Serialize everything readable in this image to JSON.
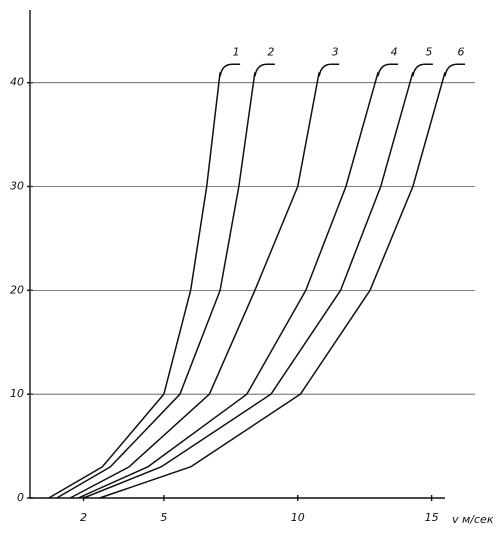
{
  "chart_data": {
    "type": "line",
    "x_label": "v м/сек",
    "xlim": [
      0,
      15.5
    ],
    "xticks": [
      2,
      5,
      10,
      15
    ],
    "ylim": [
      0,
      47
    ],
    "yticks": [
      0,
      10,
      20,
      30,
      40
    ],
    "grid": true,
    "series": [
      {
        "name": "1",
        "color": "#111111",
        "x": [
          0.7,
          2.7,
          5.0,
          6.0,
          6.6,
          7.1
        ],
        "values": [
          0,
          3,
          10,
          20,
          30,
          41
        ]
      },
      {
        "name": "2",
        "color": "#111111",
        "x": [
          1.0,
          3.0,
          5.6,
          7.1,
          7.8,
          8.4
        ],
        "values": [
          0,
          3,
          10,
          20,
          30,
          41
        ]
      },
      {
        "name": "3",
        "color": "#111111",
        "x": [
          1.5,
          3.7,
          6.7,
          8.4,
          10.0,
          10.8
        ],
        "values": [
          0,
          3,
          10,
          20,
          30,
          41
        ]
      },
      {
        "name": "4",
        "color": "#111111",
        "x": [
          1.8,
          4.4,
          8.1,
          10.3,
          11.8,
          13.0
        ],
        "values": [
          0,
          3,
          10,
          20,
          30,
          41
        ]
      },
      {
        "name": "5",
        "color": "#111111",
        "x": [
          2.0,
          4.9,
          9.0,
          11.6,
          13.1,
          14.3
        ],
        "values": [
          0,
          3,
          10,
          20,
          30,
          41
        ]
      },
      {
        "name": "6",
        "color": "#111111",
        "x": [
          2.6,
          6.0,
          10.1,
          12.7,
          14.3,
          15.5
        ],
        "values": [
          0,
          3,
          10,
          20,
          30,
          41
        ]
      }
    ]
  }
}
